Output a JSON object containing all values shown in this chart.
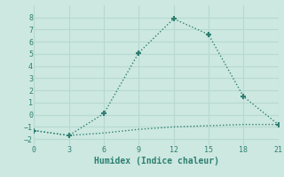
{
  "xlabel": "Humidex (Indice chaleur)",
  "x": [
    0,
    3,
    6,
    9,
    12,
    15,
    18,
    21
  ],
  "y_main": [
    -1.3,
    -1.7,
    0.1,
    5.1,
    7.9,
    6.6,
    1.5,
    -0.8
  ],
  "y_flat": [
    -1.3,
    -1.7,
    -1.5,
    -1.2,
    -1.0,
    -0.9,
    -0.8,
    -0.8
  ],
  "line_color": "#2e7f72",
  "bg_color": "#cce8e0",
  "grid_color": "#b8d8d0",
  "ylim": [
    -2.5,
    9.0
  ],
  "xlim": [
    0,
    21
  ],
  "yticks": [
    -2,
    -1,
    0,
    1,
    2,
    3,
    4,
    5,
    6,
    7,
    8
  ],
  "xticks": [
    0,
    3,
    6,
    9,
    12,
    15,
    18,
    21
  ],
  "markersize": 5,
  "linewidth": 1.0
}
